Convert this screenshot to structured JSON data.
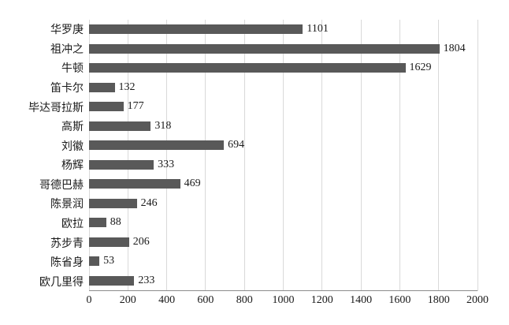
{
  "chart_data": {
    "type": "bar",
    "orientation": "horizontal",
    "title": "",
    "xlabel": "",
    "ylabel": "",
    "categories": [
      "华罗庚",
      "祖冲之",
      "牛顿",
      "笛卡尔",
      "毕达哥拉斯",
      "高斯",
      "刘徽",
      "杨辉",
      "哥德巴赫",
      "陈景润",
      "欧拉",
      "苏步青",
      "陈省身",
      "欧几里得"
    ],
    "values": [
      1101,
      1804,
      1629,
      132,
      177,
      318,
      694,
      333,
      469,
      246,
      88,
      206,
      53,
      233
    ],
    "xlim": [
      0,
      2000
    ],
    "xticks": [
      0,
      200,
      400,
      600,
      800,
      1000,
      1200,
      1400,
      1600,
      1800,
      2000
    ],
    "grid": "vertical",
    "legend": "none",
    "data_labels": true,
    "bar_color": "#595959",
    "gridline_color": "#d9d9d9",
    "axis_color": "#8c8c8c",
    "text_color": "#1a1a1a"
  }
}
